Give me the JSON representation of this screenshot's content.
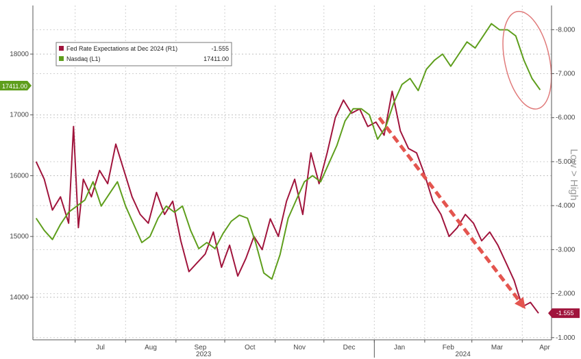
{
  "chart_data": {
    "type": "line",
    "title": "",
    "x_tick_labels": [
      "Jul",
      "Aug",
      "Sep",
      "Oct",
      "Nov",
      "Dec",
      "Jan",
      "Feb",
      "Mar",
      "Apr"
    ],
    "year_labels": [
      "2023",
      "2024"
    ],
    "left_axis": {
      "ticks": [
        "14000",
        "15000",
        "16000",
        "17000",
        "18000"
      ],
      "ylim": [
        13300,
        18800
      ],
      "values": [
        14000,
        15000,
        16000,
        17000,
        18000
      ]
    },
    "right_axis": {
      "title": "Low > High",
      "ticks": [
        "-1.000",
        "-2.000",
        "-3.000",
        "-4.000",
        "-5.000",
        "-6.000",
        "-7.000",
        "-8.000"
      ],
      "ylim": [
        -0.95,
        -8.55
      ],
      "values": [
        -1,
        -2,
        -3,
        -4,
        -5,
        -6,
        -7,
        -8
      ]
    },
    "grid": true,
    "legend_position": "top-left",
    "series": [
      {
        "name": "Fed Rate Expectations at Dec 2024 (R1)",
        "last_label": "-1.555",
        "axis": "right",
        "color": "#a0143c",
        "x": [
          "2023-06-07",
          "2023-06-12",
          "2023-06-17",
          "2023-06-22",
          "2023-06-27",
          "2023-06-30",
          "2023-07-03",
          "2023-07-06",
          "2023-07-11",
          "2023-07-16",
          "2023-07-21",
          "2023-07-26",
          "2023-07-31",
          "2023-08-05",
          "2023-08-10",
          "2023-08-15",
          "2023-08-20",
          "2023-08-25",
          "2023-08-30",
          "2023-09-04",
          "2023-09-09",
          "2023-09-14",
          "2023-09-19",
          "2023-09-24",
          "2023-09-29",
          "2023-10-04",
          "2023-10-09",
          "2023-10-14",
          "2023-10-19",
          "2023-10-24",
          "2023-10-29",
          "2023-11-03",
          "2023-11-08",
          "2023-11-13",
          "2023-11-18",
          "2023-11-23",
          "2023-11-28",
          "2023-12-03",
          "2023-12-08",
          "2023-12-13",
          "2023-12-18",
          "2023-12-23",
          "2023-12-28",
          "2024-01-02",
          "2024-01-07",
          "2024-01-12",
          "2024-01-17",
          "2024-01-22",
          "2024-01-27",
          "2024-02-01",
          "2024-02-06",
          "2024-02-11",
          "2024-02-16",
          "2024-02-21",
          "2024-02-26",
          "2024-03-02",
          "2024-03-07",
          "2024-03-12",
          "2024-03-17",
          "2024-03-22",
          "2024-03-27",
          "2024-04-01",
          "2024-04-06",
          "2024-04-11"
        ],
        "values": [
          -5.0,
          -4.6,
          -3.9,
          -4.2,
          -3.6,
          -5.8,
          -3.5,
          -4.6,
          -4.2,
          -4.8,
          -4.5,
          -5.4,
          -4.8,
          -4.2,
          -3.8,
          -3.6,
          -4.3,
          -3.8,
          -4.1,
          -3.2,
          -2.5,
          -2.7,
          -2.9,
          -3.4,
          -2.6,
          -3.1,
          -2.4,
          -2.8,
          -3.3,
          -3.0,
          -3.7,
          -3.3,
          -4.1,
          -4.6,
          -3.8,
          -5.2,
          -4.5,
          -5.2,
          -6.0,
          -6.4,
          -6.1,
          -6.2,
          -5.8,
          -5.9,
          -5.6,
          -6.6,
          -5.7,
          -5.3,
          -5.2,
          -4.7,
          -4.1,
          -3.8,
          -3.3,
          -3.5,
          -3.8,
          -3.6,
          -3.2,
          -3.4,
          -3.1,
          -2.7,
          -2.3,
          -1.7,
          -1.8,
          -1.555
        ]
      },
      {
        "name": "Nasdaq (L1)",
        "last_label": "17411.00",
        "axis": "left",
        "color": "#5e9e1c",
        "x": [
          "2023-06-07",
          "2023-06-12",
          "2023-06-17",
          "2023-06-22",
          "2023-06-27",
          "2023-07-02",
          "2023-07-07",
          "2023-07-12",
          "2023-07-17",
          "2023-07-22",
          "2023-07-27",
          "2023-08-01",
          "2023-08-06",
          "2023-08-11",
          "2023-08-16",
          "2023-08-21",
          "2023-08-26",
          "2023-08-31",
          "2023-09-05",
          "2023-09-10",
          "2023-09-15",
          "2023-09-20",
          "2023-09-25",
          "2023-09-30",
          "2023-10-05",
          "2023-10-10",
          "2023-10-15",
          "2023-10-20",
          "2023-10-25",
          "2023-10-30",
          "2023-11-04",
          "2023-11-09",
          "2023-11-14",
          "2023-11-19",
          "2023-11-24",
          "2023-11-29",
          "2023-12-04",
          "2023-12-09",
          "2023-12-14",
          "2023-12-19",
          "2023-12-24",
          "2023-12-29",
          "2024-01-03",
          "2024-01-08",
          "2024-01-13",
          "2024-01-18",
          "2024-01-23",
          "2024-01-28",
          "2024-02-02",
          "2024-02-07",
          "2024-02-12",
          "2024-02-17",
          "2024-02-22",
          "2024-02-27",
          "2024-03-03",
          "2024-03-08",
          "2024-03-13",
          "2024-03-18",
          "2024-03-23",
          "2024-03-28",
          "2024-04-02",
          "2024-04-07",
          "2024-04-12"
        ],
        "values": [
          15300,
          15100,
          14950,
          15200,
          15400,
          15500,
          15600,
          15900,
          15500,
          15700,
          15900,
          15500,
          15200,
          14900,
          15000,
          15300,
          15500,
          15400,
          15500,
          15100,
          14800,
          14900,
          14800,
          15050,
          15250,
          15350,
          15300,
          14900,
          14400,
          14300,
          14700,
          15300,
          15600,
          15900,
          16000,
          15900,
          16200,
          16500,
          16900,
          17100,
          17100,
          17000,
          16600,
          16800,
          17200,
          17500,
          17600,
          17400,
          17750,
          17900,
          18000,
          17800,
          18000,
          18200,
          18100,
          18300,
          18500,
          18400,
          18400,
          18300,
          17900,
          17600,
          17411
        ]
      }
    ],
    "annotations": [
      {
        "kind": "ellipse",
        "around": "Nasdaq late March 2024"
      },
      {
        "kind": "dashed-arrow",
        "from": [
          "2024-01-04",
          -6.0
        ],
        "to": [
          "2024-04-03",
          -1.65
        ]
      }
    ]
  }
}
